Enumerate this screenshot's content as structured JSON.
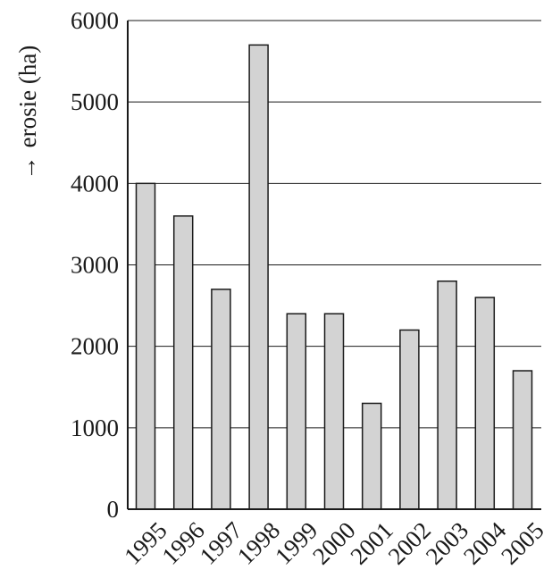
{
  "chart_data": {
    "type": "bar",
    "categories": [
      "1995",
      "1996",
      "1997",
      "1998",
      "1999",
      "2000",
      "2001",
      "2002",
      "2003",
      "2004",
      "2005"
    ],
    "values": [
      4000,
      3600,
      2700,
      5700,
      2400,
      2400,
      1300,
      2200,
      2800,
      2600,
      1700
    ],
    "title": "",
    "xlabel": "",
    "ylabel": "erosie (ha)",
    "ylabel_arrow": "→",
    "ylim": [
      0,
      6000
    ],
    "yticks": [
      0,
      1000,
      2000,
      3000,
      4000,
      5000,
      6000
    ],
    "grid": true,
    "bar_color": "#d3d3d3",
    "bar_edge_color": "#1a1a1a"
  }
}
